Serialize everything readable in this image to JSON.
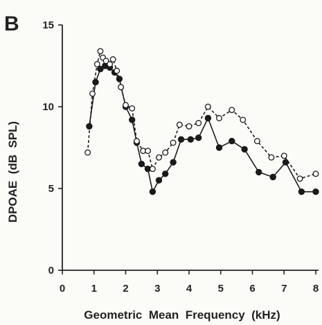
{
  "chart_data": {
    "type": "line",
    "panel_label": "B",
    "xlabel": "Geometric  Mean  Frequency  (kHz)",
    "ylabel": "DPOAE  (dB  SPL)",
    "xlim": [
      0,
      8
    ],
    "ylim": [
      0,
      15
    ],
    "xticks": [
      "0",
      "1",
      "2",
      "3",
      "4",
      "5",
      "6",
      "7",
      "8"
    ],
    "yticks": [
      "0",
      "5",
      "10",
      "15"
    ],
    "grid": false,
    "legend": "none",
    "series": [
      {
        "marker": "filled-circle",
        "line_style": "solid",
        "color": "#1a1a1a",
        "x": [
          0.85,
          1.05,
          1.2,
          1.35,
          1.5,
          1.65,
          1.8,
          2.0,
          2.2,
          2.35,
          2.5,
          2.7,
          2.85,
          3.05,
          3.25,
          3.5,
          3.75,
          4.05,
          4.3,
          4.6,
          4.95,
          5.35,
          5.75,
          6.2,
          6.65,
          7.05,
          7.55,
          8.0
        ],
        "y": [
          8.8,
          11.5,
          12.3,
          12.5,
          12.4,
          12.1,
          11.7,
          10.0,
          9.2,
          7.8,
          6.5,
          6.2,
          4.8,
          5.5,
          5.9,
          6.6,
          8.0,
          8.0,
          8.1,
          9.3,
          7.5,
          7.9,
          7.4,
          6.0,
          5.7,
          6.6,
          4.8,
          4.8
        ]
      },
      {
        "marker": "open-circle",
        "line_style": "dashed",
        "color": "#1a1a1a",
        "x": [
          0.8,
          0.95,
          1.1,
          1.2,
          1.28,
          1.38,
          1.5,
          1.6,
          1.72,
          1.85,
          2.0,
          2.2,
          2.35,
          2.55,
          2.7,
          2.85,
          3.05,
          3.25,
          3.5,
          3.7,
          4.0,
          4.3,
          4.6,
          4.95,
          5.35,
          5.7,
          6.15,
          6.6,
          7.0,
          7.5,
          8.0
        ],
        "y": [
          7.2,
          10.8,
          12.6,
          13.4,
          13.0,
          12.8,
          12.6,
          12.9,
          12.2,
          11.2,
          10.1,
          9.9,
          7.9,
          7.3,
          7.3,
          6.2,
          6.9,
          7.2,
          7.8,
          8.9,
          8.8,
          9.0,
          10.0,
          9.3,
          9.8,
          9.2,
          7.9,
          6.9,
          7.0,
          5.6,
          5.9
        ]
      }
    ]
  },
  "colors": {
    "ink": "#1a1a1a",
    "background": "#fbfbf8",
    "open_marker_fill": "#ffffff"
  }
}
